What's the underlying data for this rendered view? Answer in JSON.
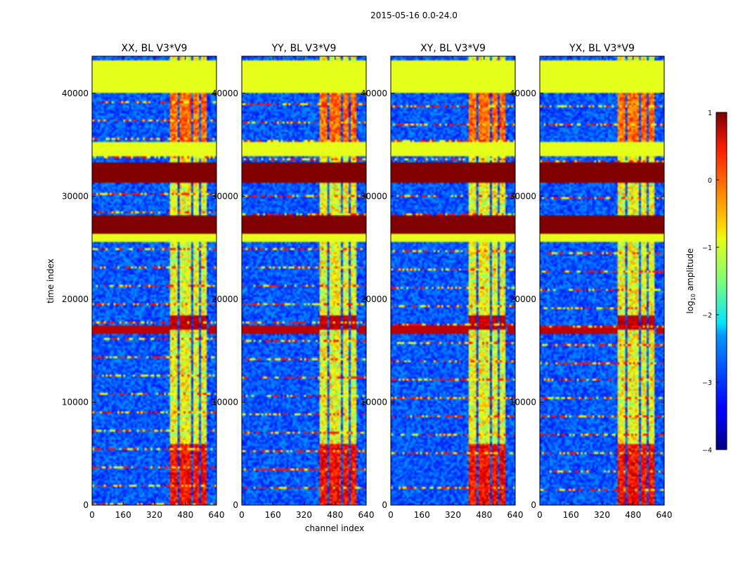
{
  "figure": {
    "suptitle": "2015-05-16 0.0-24.0"
  },
  "chart_data": {
    "type": "heatmap",
    "panels": [
      {
        "title": "XX, BL V3*V9",
        "polarization": "XX"
      },
      {
        "title": "YY, BL V3*V9",
        "polarization": "YY"
      },
      {
        "title": "XY, BL V3*V9",
        "polarization": "XY"
      },
      {
        "title": "YX, BL V3*V9",
        "polarization": "YX"
      }
    ],
    "xlabel": "channel index",
    "ylabel": "time index",
    "xlim": [
      0,
      640
    ],
    "ylim": [
      0,
      43600
    ],
    "xticks": [
      "0",
      "160",
      "320",
      "480",
      "640"
    ],
    "yticks": [
      "0",
      "10000",
      "20000",
      "30000",
      "40000"
    ],
    "colorbar": {
      "label": "log",
      "label_sub": "10",
      "label_suffix": " amplitude",
      "range": [
        -4,
        1
      ],
      "ticks": [
        "1",
        "0",
        "−1",
        "−2",
        "−3",
        "−4"
      ],
      "colormap": "jet"
    },
    "features": {
      "flagged_value": -1.0,
      "saturated_value": 1.0,
      "noise_floor_range": [
        -3.3,
        -2.6
      ],
      "flagged_time_bands": [
        [
          40000,
          43300
        ],
        [
          33800,
          35200
        ],
        [
          25600,
          26400
        ]
      ],
      "saturated_time_bands": [
        [
          31300,
          33300
        ],
        [
          26300,
          28200
        ]
      ],
      "bright_channel_range": [
        400,
        600
      ],
      "bright_channel_columns": [
        [
          405,
          440
        ],
        [
          447,
          478
        ],
        [
          485,
          512
        ],
        [
          520,
          548
        ],
        [
          556,
          585
        ]
      ]
    }
  }
}
